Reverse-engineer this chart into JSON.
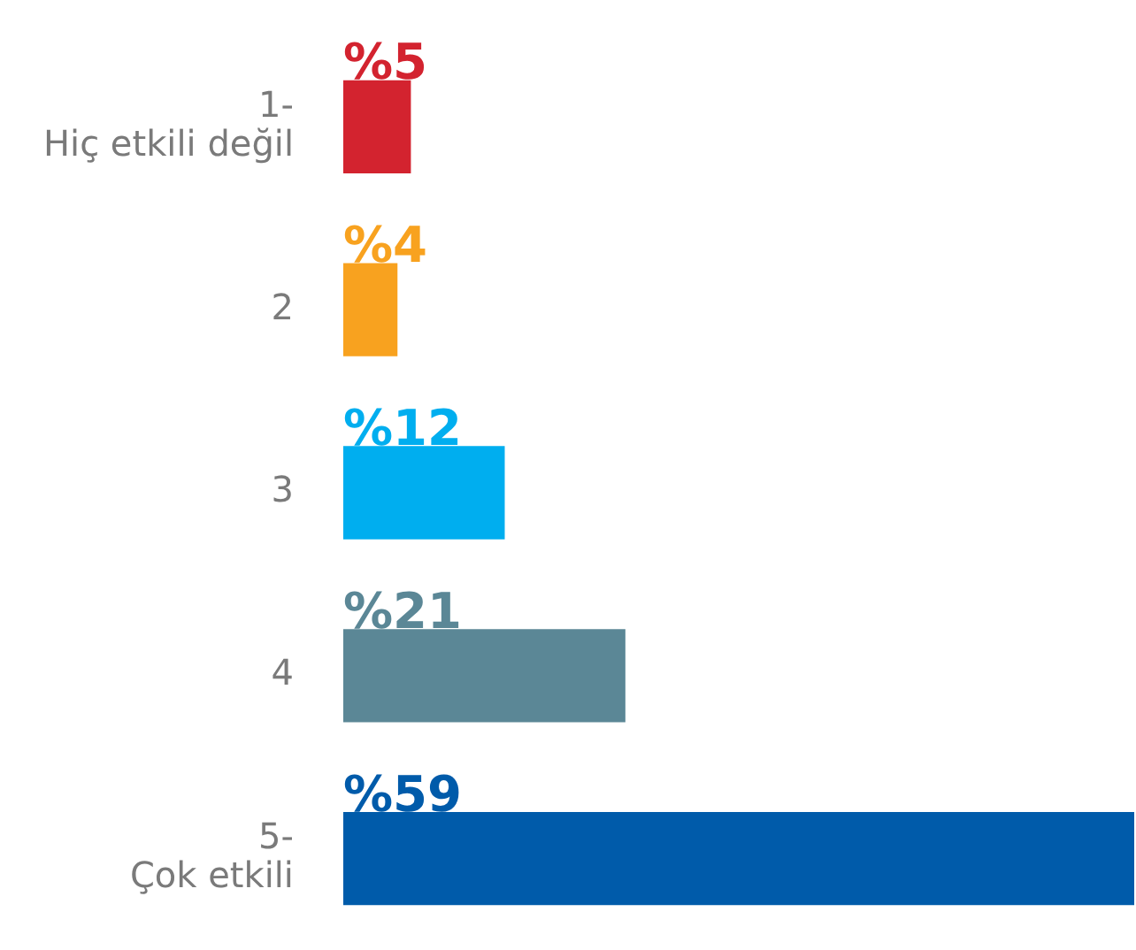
{
  "chart_data": {
    "type": "bar",
    "orientation": "horizontal",
    "categories": [
      "1-\nHiç etkili değil",
      "2",
      "3",
      "4",
      "5-\nÇok etkili"
    ],
    "values": [
      5,
      4,
      12,
      21,
      59
    ],
    "colors": [
      "#d3232f",
      "#f8a21f",
      "#00aeef",
      "#5b8796",
      "#005baa"
    ],
    "value_labels": [
      "%5",
      "%4",
      "%12",
      "%21",
      "%59"
    ],
    "legend": false
  }
}
